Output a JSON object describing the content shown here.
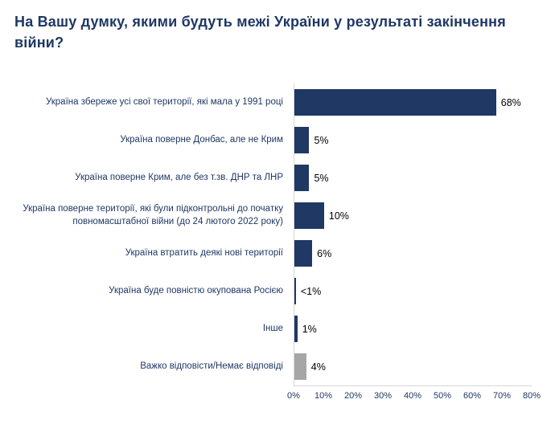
{
  "page": {
    "background": "#ffffff"
  },
  "chart_data": {
    "type": "bar",
    "orientation": "horizontal",
    "title": "На Вашу думку, якими будуть межі України у результаті закінчення війни?",
    "categories": [
      "Україна збереже усі свої території, які мала у 1991 році",
      "Україна поверне Донбас, але не Крим",
      "Україна поверне Крим, але без т.зв. ДНР та ЛНР",
      "Україна поверне території, які були підконтрольні до початку повномасштабної війни (до 24 лютого 2022 року)",
      "Україна втратить деякі нові території",
      "Україна буде повністю окупована Росією",
      "Інше",
      "Важко відповісти/Немає відповіді"
    ],
    "values": [
      68,
      5,
      5,
      10,
      6,
      0.5,
      1,
      4
    ],
    "value_labels": [
      "68%",
      "5%",
      "5%",
      "10%",
      "6%",
      "<1%",
      "1%",
      "4%"
    ],
    "bar_colors": [
      "#1f3864",
      "#1f3864",
      "#1f3864",
      "#1f3864",
      "#1f3864",
      "#1f3864",
      "#1f3864",
      "#a6a6a6"
    ],
    "xlim": [
      0,
      80
    ],
    "x_ticks": [
      "0%",
      "10%",
      "20%",
      "30%",
      "40%",
      "50%",
      "60%",
      "70%",
      "80%"
    ],
    "grid": false,
    "legend": "none",
    "accent_color": "#1f3864",
    "na_color": "#a6a6a6",
    "value_label_color": "#000000"
  }
}
